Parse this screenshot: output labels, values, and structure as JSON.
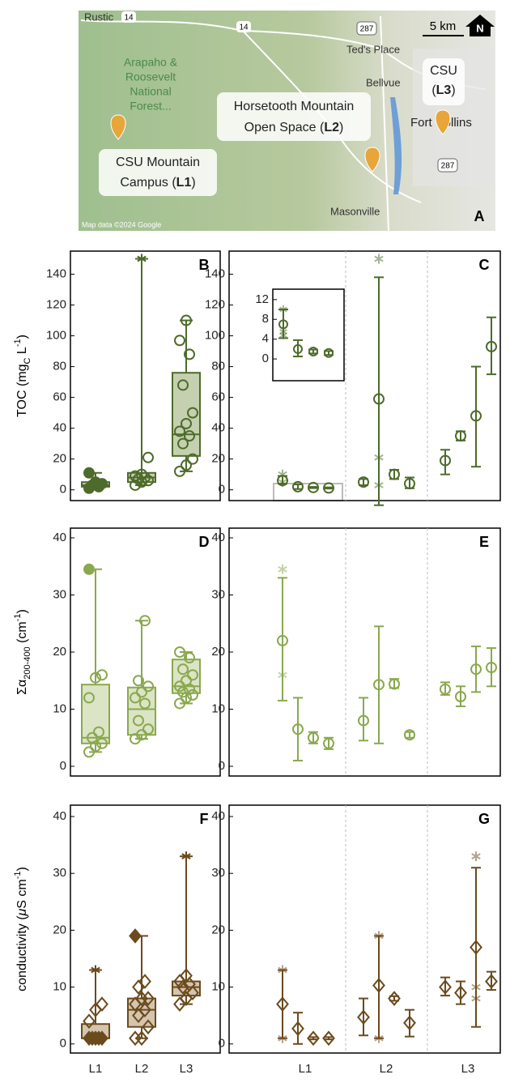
{
  "map": {
    "places": [
      "Rustic",
      "Ted's Place",
      "Bellvue",
      "Fort Collins",
      "Masonville"
    ],
    "roads": [
      "14",
      "14",
      "287",
      "287"
    ],
    "forest": [
      "Arapaho &",
      "Roosevelt",
      "National",
      "Forest..."
    ],
    "l1": {
      "line1": "CSU Mountain",
      "pre": "Campus (",
      "bold": "L1",
      "post": ")"
    },
    "l2": {
      "line1": "Horsetooth Mountain",
      "pre": "Open Space (",
      "bold": "L2",
      "post": ")"
    },
    "l3": {
      "line1": "CSU",
      "pre": "(",
      "bold": "L3",
      "post": ")"
    },
    "attribution": "Map data ©2024 Google",
    "scale": "5 km",
    "north": "N",
    "panel": "A"
  },
  "chart_data": [
    {
      "type": "box",
      "panel": "B",
      "color": "#4d6b2a",
      "fill": "#c5d0b0",
      "marker": "circle",
      "ylim": [
        -7,
        155
      ],
      "yticks": [
        0,
        20,
        40,
        60,
        80,
        100,
        120,
        140
      ],
      "ylabel_parts": [
        "TOC (mg",
        "C",
        " L",
        "-1",
        ")"
      ],
      "ylabel_styles": [
        "normal",
        "sub",
        "normal",
        "sup",
        "normal"
      ],
      "boxes": [
        {
          "min": 1,
          "q1": 2,
          "median": 3,
          "q3": 5,
          "max": 11,
          "points": [],
          "filled": [
            1,
            2,
            3,
            4,
            5,
            11
          ],
          "stars": []
        },
        {
          "min": 3,
          "q1": 5,
          "median": 8,
          "q3": 11,
          "max": 150,
          "points": [
            3,
            5,
            6,
            7,
            8,
            9,
            10,
            21
          ],
          "filled": [],
          "stars": [
            150
          ]
        },
        {
          "min": 12,
          "q1": 22,
          "median": 36,
          "q3": 76,
          "max": 110,
          "points": [
            12,
            16,
            20,
            30,
            35,
            38,
            43,
            50,
            68,
            88,
            97,
            110
          ],
          "filled": [],
          "stars": []
        }
      ]
    },
    {
      "type": "errorbar",
      "panel": "C",
      "color": "#4d6b2a",
      "marker": "circle",
      "ylim": [
        -7,
        155
      ],
      "yticks": [
        0,
        20,
        40,
        60,
        80,
        100,
        120,
        140
      ],
      "groups": [
        [
          {
            "mean": 6,
            "low": 4,
            "high": 9,
            "stars": [
              10,
              5
            ]
          },
          {
            "mean": 2,
            "low": 0.5,
            "high": 3.5
          },
          {
            "mean": 1.5,
            "low": 1.1,
            "high": 1.9
          },
          {
            "mean": 1.2,
            "low": 0.8,
            "high": 1.6
          }
        ],
        [
          {
            "mean": 5,
            "low": 3,
            "high": 7
          },
          {
            "mean": 59,
            "low": -10,
            "high": 138,
            "stars": [
              150,
              21,
              3
            ]
          },
          {
            "mean": 10,
            "low": 7,
            "high": 13
          },
          {
            "mean": 4,
            "low": 1,
            "high": 8
          }
        ],
        [
          {
            "mean": 19,
            "low": 10,
            "high": 26
          },
          {
            "mean": 35,
            "low": 32,
            "high": 38
          },
          {
            "mean": 48,
            "low": 15,
            "high": 80
          },
          {
            "mean": 93,
            "low": 75,
            "high": 112
          }
        ]
      ]
    },
    {
      "type": "errorbar",
      "color": "#4d6b2a",
      "marker": "circle",
      "ylim": [
        -4.4,
        14.1
      ],
      "yticks": [
        0,
        4,
        8,
        12
      ],
      "groups": [
        [
          {
            "mean": 7,
            "low": 4.2,
            "high": 10,
            "stars": [
              10,
              5.5,
              4.8
            ]
          },
          {
            "mean": 2,
            "low": 0.5,
            "high": 3.8
          },
          {
            "mean": 1.5,
            "low": 1.1,
            "high": 1.9
          },
          {
            "mean": 1.2,
            "low": 0.8,
            "high": 1.6
          }
        ]
      ]
    },
    {
      "type": "box",
      "panel": "D",
      "color": "#8aa84e",
      "fill": "#dbe4c5",
      "marker": "circle",
      "ylim": [
        -1.7,
        41.7
      ],
      "yticks": [
        0,
        10,
        20,
        30,
        40
      ],
      "ylabel_parts": [
        "Σα",
        "200-400",
        " (cm",
        "-1",
        ")"
      ],
      "ylabel_styles": [
        "normal",
        "sub",
        "normal",
        "sup",
        "normal"
      ],
      "boxes": [
        {
          "min": 2.5,
          "q1": 4,
          "median": 5,
          "q3": 14.3,
          "max": 34.5,
          "points": [
            2.5,
            3.5,
            4,
            5,
            6,
            12,
            15.5,
            16
          ],
          "filled": [
            34.5
          ],
          "stars": []
        },
        {
          "min": 4.8,
          "q1": 5.5,
          "median": 10,
          "q3": 13.8,
          "max": 25.5,
          "points": [
            4.8,
            5.5,
            6.5,
            8,
            11,
            12,
            13,
            14,
            15,
            25.5
          ],
          "filled": [],
          "stars": []
        },
        {
          "min": 11,
          "q1": 12.8,
          "median": 14,
          "q3": 18.7,
          "max": 20,
          "points": [
            11,
            12,
            12.5,
            13,
            13.5,
            14,
            15,
            16,
            17,
            19,
            20
          ],
          "filled": [],
          "stars": []
        }
      ]
    },
    {
      "type": "errorbar",
      "panel": "E",
      "color": "#8aa84e",
      "marker": "circle",
      "ylim": [
        -1.7,
        41.7
      ],
      "yticks": [
        0,
        10,
        20,
        30,
        40
      ],
      "groups": [
        [
          {
            "mean": 22,
            "low": 11.5,
            "high": 33,
            "stars": [
              34.5,
              16
            ]
          },
          {
            "mean": 6.5,
            "low": 1,
            "high": 12
          },
          {
            "mean": 5,
            "low": 4,
            "high": 6
          },
          {
            "mean": 4,
            "low": 3,
            "high": 5
          }
        ],
        [
          {
            "mean": 8,
            "low": 4.5,
            "high": 12
          },
          {
            "mean": 14.3,
            "low": 4,
            "high": 24.5
          },
          {
            "mean": 14.4,
            "low": 13.7,
            "high": 15.3
          },
          {
            "mean": 5.5,
            "low": 5,
            "high": 6
          }
        ],
        [
          {
            "mean": 13.5,
            "low": 12.5,
            "high": 14.7
          },
          {
            "mean": 12.2,
            "low": 10.5,
            "high": 14
          },
          {
            "mean": 17,
            "low": 13,
            "high": 21
          },
          {
            "mean": 17.3,
            "low": 14,
            "high": 20.7
          }
        ]
      ]
    },
    {
      "type": "box",
      "panel": "F",
      "color": "#6b4a1c",
      "fill": "#d3c5ae",
      "marker": "diamond",
      "ylim": [
        -1.6,
        42
      ],
      "yticks": [
        0,
        10,
        20,
        30,
        40
      ],
      "ylabel_parts": [
        "conductivity (",
        "μ",
        "S cm",
        "-1",
        ")"
      ],
      "ylabel_styles": [
        "normal",
        "italic",
        "normal",
        "sup",
        "normal"
      ],
      "categories": [
        "L1",
        "L2",
        "L3"
      ],
      "boxes": [
        {
          "min": 1,
          "q1": 1,
          "median": 1,
          "q3": 3.5,
          "max": 13,
          "points": [
            4,
            6,
            7
          ],
          "filled": [
            1,
            1,
            1,
            1,
            1
          ],
          "stars": [
            13
          ]
        },
        {
          "min": 1,
          "q1": 3,
          "median": 6,
          "q3": 8,
          "max": 19,
          "points": [
            1,
            1,
            3,
            5,
            6,
            7,
            8,
            8,
            10,
            11
          ],
          "filled": [
            19
          ],
          "stars": []
        },
        {
          "min": 7,
          "q1": 8.5,
          "median": 10,
          "q3": 11,
          "max": 33,
          "points": [
            7,
            8,
            9,
            10,
            10.5,
            11,
            12
          ],
          "filled": [],
          "stars": [
            33
          ]
        }
      ]
    },
    {
      "type": "errorbar",
      "panel": "G",
      "color": "#6b4a1c",
      "marker": "diamond",
      "ylim": [
        -1.6,
        42
      ],
      "yticks": [
        0,
        10,
        20,
        30,
        40
      ],
      "categories": [
        "L1",
        "L2",
        "L3"
      ],
      "groups": [
        [
          {
            "mean": 7,
            "low": 1,
            "high": 13,
            "stars": [
              13,
              1
            ]
          },
          {
            "mean": 2.7,
            "low": 0,
            "high": 5.5
          },
          {
            "mean": 1,
            "low": 0.8,
            "high": 1.2
          },
          {
            "mean": 1,
            "low": 0.8,
            "high": 1.2
          }
        ],
        [
          {
            "mean": 4.7,
            "low": 1.5,
            "high": 8
          },
          {
            "mean": 10.3,
            "low": 1,
            "high": 19,
            "stars": [
              19,
              1
            ]
          },
          {
            "mean": 8,
            "low": 7.6,
            "high": 8.4
          },
          {
            "mean": 3.7,
            "low": 1.3,
            "high": 6
          }
        ],
        [
          {
            "mean": 10,
            "low": 8.5,
            "high": 11.7
          },
          {
            "mean": 9,
            "low": 7,
            "high": 11
          },
          {
            "mean": 17,
            "low": 3,
            "high": 31,
            "stars": [
              33,
              10,
              8
            ]
          },
          {
            "mean": 11,
            "low": 9.5,
            "high": 12.7
          }
        ]
      ]
    }
  ]
}
